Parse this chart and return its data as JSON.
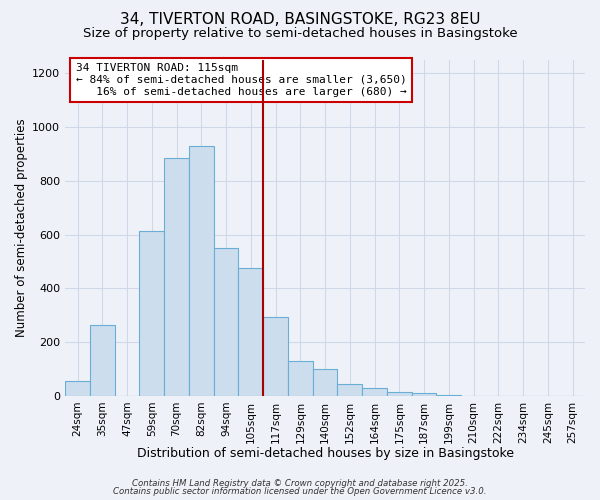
{
  "title": "34, TIVERTON ROAD, BASINGSTOKE, RG23 8EU",
  "subtitle": "Size of property relative to semi-detached houses in Basingstoke",
  "xlabel": "Distribution of semi-detached houses by size in Basingstoke",
  "ylabel": "Number of semi-detached properties",
  "categories": [
    "24sqm",
    "35sqm",
    "47sqm",
    "59sqm",
    "70sqm",
    "82sqm",
    "94sqm",
    "105sqm",
    "117sqm",
    "129sqm",
    "140sqm",
    "152sqm",
    "164sqm",
    "175sqm",
    "187sqm",
    "199sqm",
    "210sqm",
    "222sqm",
    "234sqm",
    "245sqm",
    "257sqm"
  ],
  "bar_heights": [
    55,
    265,
    0,
    615,
    885,
    930,
    550,
    475,
    295,
    130,
    100,
    45,
    28,
    15,
    10,
    5,
    0,
    0,
    0,
    0,
    0
  ],
  "bar_color": "#ccdded",
  "bar_edge_color": "#6aadd5",
  "vline_color": "#aa0000",
  "vline_index": 8,
  "annotation_line1": "34 TIVERTON ROAD: 115sqm",
  "annotation_line2": "← 84% of semi-detached houses are smaller (3,650)",
  "annotation_line3": "   16% of semi-detached houses are larger (680) →",
  "annotation_box_edgecolor": "#cc0000",
  "annotation_box_facecolor": "#ffffff",
  "ylim": [
    0,
    1250
  ],
  "yticks": [
    0,
    200,
    400,
    600,
    800,
    1000,
    1200
  ],
  "background_color": "#eef2f8",
  "grid_color": "#d0d8e8",
  "footer_line1": "Contains HM Land Registry data © Crown copyright and database right 2025.",
  "footer_line2": "Contains public sector information licensed under the Open Government Licence v3.0.",
  "title_fontsize": 11,
  "subtitle_fontsize": 9.5,
  "xlabel_fontsize": 9,
  "ylabel_fontsize": 8.5
}
